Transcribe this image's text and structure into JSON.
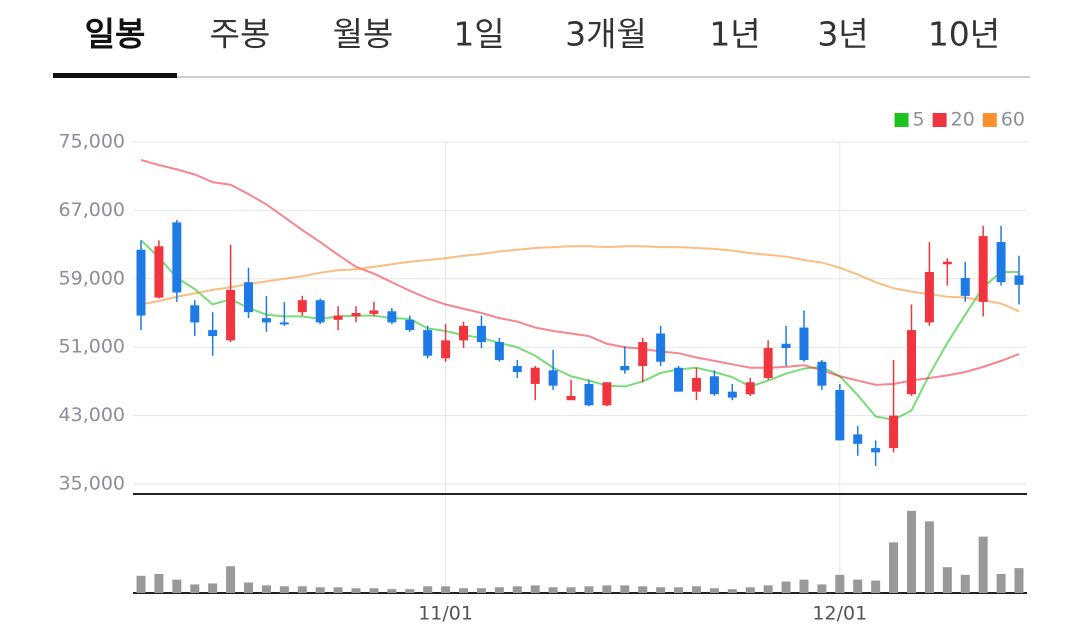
{
  "tabs": {
    "items": [
      "일봉",
      "주봉",
      "월봉",
      "1일",
      "3개월",
      "1년",
      "3년",
      "10년"
    ],
    "active": 0
  },
  "chart_data": {
    "type": "candlestick",
    "categories": [
      null,
      null,
      null,
      null,
      null,
      null,
      null,
      null,
      null,
      null,
      null,
      null,
      null,
      null,
      null,
      null,
      null,
      "11/01",
      null,
      null,
      null,
      null,
      null,
      null,
      null,
      null,
      null,
      null,
      null,
      null,
      null,
      null,
      null,
      null,
      null,
      null,
      null,
      null,
      null,
      "12/01",
      null,
      null,
      null,
      null,
      null,
      null,
      null,
      null,
      null,
      null
    ],
    "open": [
      62400,
      56800,
      65600,
      55900,
      53000,
      51800,
      58600,
      54400,
      53900,
      55100,
      56500,
      54200,
      54600,
      54900,
      55200,
      54200,
      53000,
      49700,
      51800,
      53500,
      51600,
      48800,
      46700,
      48300,
      44800,
      46700,
      44200,
      48800,
      48800,
      52600,
      48600,
      45800,
      47600,
      45800,
      45500,
      47400,
      51400,
      53300,
      49300,
      46000,
      40800,
      39200,
      39200,
      45500,
      53900,
      60700,
      59100,
      56300,
      63300,
      59400
    ],
    "high": [
      63500,
      63500,
      65900,
      56500,
      55100,
      63000,
      60300,
      57000,
      56300,
      57000,
      56700,
      55800,
      55800,
      56300,
      55600,
      54700,
      53500,
      53700,
      54000,
      54700,
      52100,
      49500,
      48800,
      50700,
      47200,
      47200,
      46900,
      51100,
      52100,
      53500,
      48800,
      48600,
      48300,
      46700,
      47400,
      51800,
      53500,
      55300,
      49500,
      46700,
      41800,
      40100,
      49500,
      56000,
      63300,
      61400,
      61000,
      65200,
      65200,
      61700
    ],
    "low": [
      53000,
      56700,
      56300,
      52300,
      50000,
      51600,
      54400,
      52800,
      53500,
      54700,
      53700,
      53000,
      53900,
      54600,
      53700,
      52800,
      49700,
      49300,
      50900,
      50900,
      49300,
      47400,
      44800,
      46000,
      44800,
      44100,
      44100,
      47900,
      46900,
      48800,
      45800,
      44800,
      45300,
      44800,
      45300,
      47200,
      48800,
      49300,
      46000,
      40100,
      38300,
      37100,
      38700,
      45300,
      53500,
      58200,
      56300,
      54600,
      58200,
      56000
    ],
    "close": [
      54700,
      62800,
      57400,
      53900,
      52300,
      57700,
      55100,
      53900,
      53700,
      56500,
      53900,
      54700,
      55000,
      55300,
      53900,
      53000,
      50000,
      51800,
      53500,
      51600,
      49500,
      48100,
      48600,
      46500,
      45300,
      44200,
      46900,
      48300,
      51600,
      49300,
      45800,
      47400,
      45500,
      45100,
      46900,
      50900,
      50900,
      49500,
      46500,
      40100,
      39700,
      38700,
      43000,
      53000,
      59800,
      61000,
      57000,
      64000,
      58600,
      58300
    ],
    "volume": [
      18,
      20,
      14,
      9,
      10,
      28,
      11,
      8,
      7,
      7,
      6,
      6,
      5,
      5,
      4,
      4,
      7,
      7,
      5,
      5,
      6,
      7,
      8,
      6,
      6,
      7,
      8,
      8,
      7,
      6,
      6,
      7,
      5,
      4,
      6,
      8,
      12,
      14,
      9,
      19,
      14,
      13,
      53,
      86,
      75,
      27,
      19,
      59,
      20,
      26
    ],
    "up_color": "#f0353f",
    "down_color": "#1e7be6",
    "volume_color": "#999999",
    "moving_averages": [
      {
        "name": "5",
        "color": "#1fc31f",
        "values": [
          63500,
          61500,
          59100,
          57800,
          56000,
          56600,
          55600,
          54800,
          54600,
          54600,
          54300,
          54600,
          54700,
          54700,
          54400,
          54300,
          53200,
          52900,
          52400,
          52100,
          51500,
          51000,
          50000,
          48600,
          47600,
          47100,
          46500,
          46400,
          47000,
          48000,
          48400,
          48600,
          48100,
          47500,
          46400,
          47100,
          47900,
          48500,
          48700,
          47600,
          45400,
          42900,
          42500,
          43600,
          47800,
          51500,
          54800,
          58000,
          59800,
          59800
        ]
      },
      {
        "name": "20",
        "color": "#f0353f",
        "values": [
          72900,
          72300,
          71800,
          71200,
          70300,
          70000,
          68900,
          67700,
          66200,
          64700,
          63300,
          61800,
          60400,
          59600,
          58600,
          57600,
          56700,
          56000,
          55500,
          55000,
          54400,
          54000,
          53300,
          52900,
          52600,
          52300,
          51400,
          51000,
          50800,
          50500,
          50300,
          49800,
          49400,
          49000,
          48600,
          48600,
          48700,
          48900,
          48300,
          47600,
          47100,
          46600,
          46700,
          47100,
          47400,
          47700,
          48100,
          48700,
          49400,
          50200
        ]
      },
      {
        "name": "60",
        "color": "#f7922e",
        "values": [
          56000,
          56400,
          56900,
          57300,
          57700,
          58000,
          58400,
          58700,
          59000,
          59300,
          59700,
          60000,
          60100,
          60400,
          60700,
          61000,
          61200,
          61400,
          61700,
          61900,
          62200,
          62400,
          62600,
          62700,
          62800,
          62800,
          62700,
          62800,
          62800,
          62700,
          62700,
          62600,
          62500,
          62300,
          62000,
          61800,
          61600,
          61200,
          60900,
          60300,
          59500,
          58600,
          57900,
          57500,
          57200,
          56900,
          56800,
          56500,
          56100,
          55200
        ]
      }
    ],
    "ylim": [
      35000,
      75000
    ],
    "yticks": [
      {
        "value": 35000,
        "label": "35,000"
      },
      {
        "value": 43000,
        "label": "43,000"
      },
      {
        "value": 51000,
        "label": "51,000"
      },
      {
        "value": 59000,
        "label": "59,000"
      },
      {
        "value": 67000,
        "label": "67,000"
      },
      {
        "value": 75000,
        "label": "75,000"
      }
    ],
    "volume_ylim": [
      0,
      90
    ],
    "grid": true
  }
}
